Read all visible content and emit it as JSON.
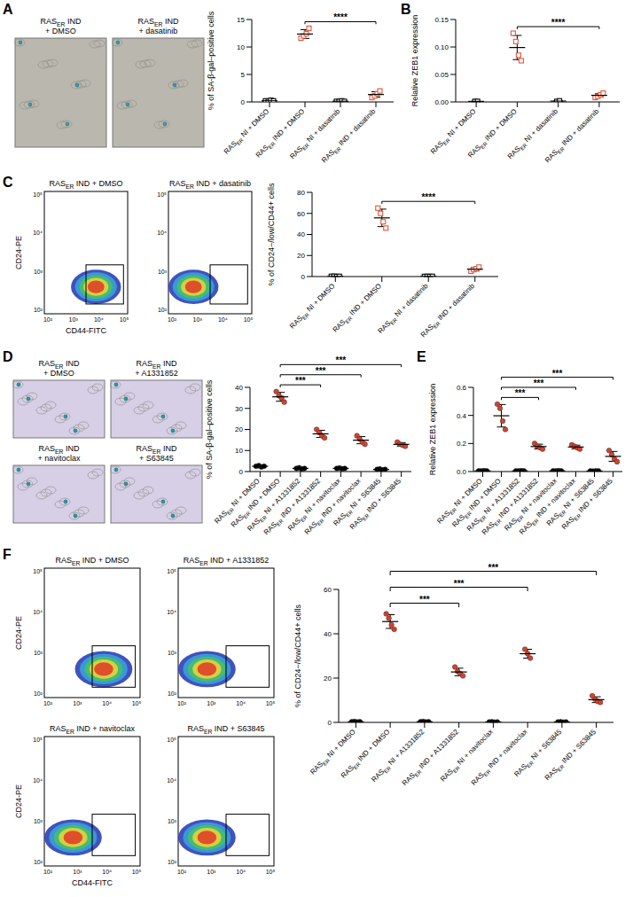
{
  "chart_data": [
    {
      "type": "scatter",
      "y_label": "% of SA-β-gal–positive cells",
      "categories": [
        "RASER NI + DMSO",
        "RASER IND + DMSO",
        "RASER NI + dasatinib",
        "RASER IND + dasatinib"
      ],
      "values": [
        0.2,
        12.35,
        0.12,
        1.35
      ],
      "sd": [
        0.1,
        0.8,
        0.05,
        0.5
      ],
      "points": [
        [
          0.2,
          0.1,
          0.3,
          0.2
        ],
        [
          11.6,
          12.0,
          12.4,
          13.4
        ],
        [
          0.1,
          0.1,
          0.2,
          0.1
        ],
        [
          0.8,
          1.1,
          1.5,
          2.0
        ]
      ],
      "colors": [
        "#000000",
        "#e2553b",
        "#000000",
        "#e2553b"
      ],
      "marker": "square",
      "ylim": [
        0,
        15
      ],
      "yticks": [
        0,
        5,
        10,
        15
      ],
      "comparisons": [
        {
          "from": 1,
          "to": 3,
          "label": "****"
        }
      ]
    },
    {
      "type": "scatter",
      "panel": "B",
      "y_label": "Relative ZEB1 expression",
      "categories": [
        "RASER NI + DMSO",
        "RASER IND + DMSO",
        "RASER NI + dasatinib",
        "RASER IND + dasatinib"
      ],
      "values": [
        0.001,
        0.099,
        0.0015,
        0.012
      ],
      "sd": [
        0.0005,
        0.022,
        0.0005,
        0.003
      ],
      "points": [
        [
          0.001,
          0.001
        ],
        [
          0.125,
          0.11,
          0.085,
          0.075
        ],
        [
          0.001,
          0.002
        ],
        [
          0.008,
          0.01,
          0.013,
          0.016
        ]
      ],
      "colors": [
        "#000000",
        "#e2553b",
        "#000000",
        "#e2553b"
      ],
      "marker": "square",
      "ylim": [
        0,
        0.15
      ],
      "yticks": [
        {
          "value": 0,
          "label": "0.00"
        },
        0.05,
        {
          "value": 0.1,
          "label": "0.10"
        },
        0.15
      ],
      "comparisons": [
        {
          "from": 1,
          "to": 3,
          "label": "****"
        }
      ]
    },
    {
      "type": "scatter",
      "y_label": "% of CD24−/low/CD44+ cells",
      "categories": [
        "RASER NI + DMSO",
        "RASER IND + DMSO",
        "RASER NI + dasatinib",
        "RASER IND + dasatinib"
      ],
      "values": [
        0.2,
        55.75,
        0.15,
        7
      ],
      "sd": [
        0.1,
        8.3,
        0.05,
        1.7
      ],
      "points": [
        [
          0.2,
          0.3,
          0.1,
          0.2
        ],
        [
          65,
          60,
          52,
          46
        ],
        [
          0.1,
          0.2,
          0.1,
          0.2
        ],
        [
          5,
          6.5,
          7.5,
          9
        ]
      ],
      "colors": [
        "#000000",
        "#e2553b",
        "#000000",
        "#e2553b"
      ],
      "marker": "square",
      "ylim": [
        0,
        80
      ],
      "yticks": [
        0,
        20,
        40,
        60,
        80
      ],
      "comparisons": [
        {
          "from": 1,
          "to": 3,
          "label": "****"
        }
      ]
    },
    {
      "type": "scatter",
      "y_label": "% of SA-β-gal–positive cells",
      "categories": [
        "RASER NI + DMSO",
        "RASER IND + DMSO",
        "RASER NI + A1331852",
        "RASER IND + A1331852",
        "RASER NI + navitoclax",
        "RASER IND + navitoclax",
        "RASER NI + S63845",
        "RASER IND + S63845"
      ],
      "values": [
        2.5,
        35.5,
        1.5,
        17.9,
        1.5,
        14.9,
        1,
        12.9
      ],
      "sd": [
        0.25,
        2.1,
        0.25,
        1.7,
        0.2,
        1.7,
        0.2,
        0.85
      ],
      "points": [
        [
          2.5,
          2.8,
          2.2,
          2.5
        ],
        [
          38,
          36,
          35,
          33
        ],
        [
          1.5,
          1.8,
          1.2,
          1.5
        ],
        [
          20,
          18.5,
          17,
          16
        ],
        [
          1.5,
          1.7,
          1.3,
          1.5
        ],
        [
          17,
          15.5,
          14,
          13
        ],
        [
          1,
          1.2,
          0.8,
          1
        ],
        [
          14,
          13,
          12.5,
          12
        ]
      ],
      "colors": [
        "#000000",
        "#d9402c",
        "#000000",
        "#d9402c",
        "#000000",
        "#d9402c",
        "#000000",
        "#d9402c"
      ],
      "marker": "circle",
      "ylim": [
        0,
        40
      ],
      "yticks": [
        0,
        10,
        20,
        30,
        40
      ],
      "comparisons": [
        {
          "from": 1,
          "to": 3,
          "label": "***"
        },
        {
          "from": 1,
          "to": 5,
          "label": "***"
        },
        {
          "from": 1,
          "to": 7,
          "label": "***"
        }
      ]
    },
    {
      "type": "scatter",
      "panel": "E",
      "y_label": "Relative ZEB1 expression",
      "categories": [
        "RASER NI + DMSO",
        "RASER IND + DMSO",
        "RASER NI + A1331852",
        "RASER IND + A1331852",
        "RASER NI + navitoclax",
        "RASER IND + navitoclax",
        "RASER NI + S63845",
        "RASER IND + S63845"
      ],
      "values": [
        0.005,
        0.3975,
        0.005,
        0.178,
        0.005,
        0.175,
        0.004,
        0.108
      ],
      "sd": [
        0.001,
        0.08,
        0.001,
        0.017,
        0.001,
        0.013,
        0.001,
        0.035
      ],
      "points": [
        [
          0.005,
          0.004,
          0.006,
          0.005
        ],
        [
          0.48,
          0.45,
          0.36,
          0.3
        ],
        [
          0.005,
          0.004,
          0.006,
          0.005
        ],
        [
          0.2,
          0.18,
          0.17,
          0.16
        ],
        [
          0.005,
          0.004,
          0.006,
          0.005
        ],
        [
          0.19,
          0.18,
          0.17,
          0.16
        ],
        [
          0.004,
          0.003,
          0.005,
          0.004
        ],
        [
          0.15,
          0.12,
          0.09,
          0.07
        ]
      ],
      "colors": [
        "#000000",
        "#d9402c",
        "#000000",
        "#d9402c",
        "#000000",
        "#d9402c",
        "#000000",
        "#d9402c"
      ],
      "marker": "circle",
      "ylim": [
        0,
        0.6
      ],
      "yticks": [
        {
          "value": 0,
          "label": "0.0"
        },
        0.2,
        0.4,
        0.6
      ],
      "comparisons": [
        {
          "from": 1,
          "to": 3,
          "label": "***"
        },
        {
          "from": 1,
          "to": 5,
          "label": "***"
        },
        {
          "from": 1,
          "to": 7,
          "label": "***"
        }
      ]
    },
    {
      "type": "scatter",
      "y_label": "% of CD24−/low/CD44+ cells",
      "categories": [
        "RASER NI + DMSO",
        "RASER IND + DMSO",
        "RASER NI + A1331852",
        "RASER IND + A1331852",
        "RASER NI + navitoclax",
        "RASER IND + navitoclax",
        "RASER NI + S63845",
        "RASER IND + S63845"
      ],
      "values": [
        0.3,
        45.5,
        0.3,
        22.75,
        0.2,
        31,
        0.2,
        10.25
      ],
      "sd": [
        0.1,
        3.1,
        0.1,
        1.7,
        0.1,
        2,
        0.1,
        1.3
      ],
      "points": [
        [
          0.3,
          0.4,
          0.2,
          0.3
        ],
        [
          49,
          47,
          44,
          42
        ],
        [
          0.3,
          0.4,
          0.2,
          0.3
        ],
        [
          25,
          23,
          22,
          21
        ],
        [
          0.2,
          0.3,
          0.1,
          0.2
        ],
        [
          33,
          31,
          29
        ],
        [
          0.2,
          0.3,
          0.1,
          0.2
        ],
        [
          12,
          10.5,
          9.5,
          9
        ]
      ],
      "colors": [
        "#000000",
        "#d9402c",
        "#000000",
        "#d9402c",
        "#000000",
        "#d9402c",
        "#000000",
        "#d9402c"
      ],
      "marker": "circle",
      "ylim": [
        0,
        60
      ],
      "yticks": [
        0,
        20,
        40,
        60
      ],
      "comparisons": [
        {
          "from": 1,
          "to": 3,
          "label": "***"
        },
        {
          "from": 1,
          "to": 5,
          "label": "***"
        },
        {
          "from": 1,
          "to": 7,
          "label": "***"
        }
      ]
    }
  ],
  "images": [
    {
      "panel": "A",
      "labels": [
        "RASER IND + DMSO",
        "RASER IND + dasatinib"
      ]
    },
    {
      "panel": "D",
      "labels": [
        "RASER IND + DMSO",
        "RASER IND + A1331852",
        "RASER IND + navitoclax",
        "RASER IND + S63845"
      ]
    }
  ],
  "flow": [
    {
      "panel": "C",
      "labels": [
        "RASER IND + DMSO",
        "RASER IND + dasatinib"
      ],
      "x_label": "CD44-FITC",
      "y_label": "CD24-PE",
      "ticks": [
        "10²",
        "10³",
        "10⁴",
        "10⁵"
      ]
    },
    {
      "panel": "F",
      "labels": [
        "RASER IND + DMSO",
        "RASER IND + A1331852",
        "RASER IND + navitoclax",
        "RASER IND + S63845"
      ],
      "x_label": "CD44-FITC",
      "y_label": "CD24-PE",
      "ticks": [
        "10²",
        "10³",
        "10⁴",
        "10⁵"
      ]
    }
  ]
}
